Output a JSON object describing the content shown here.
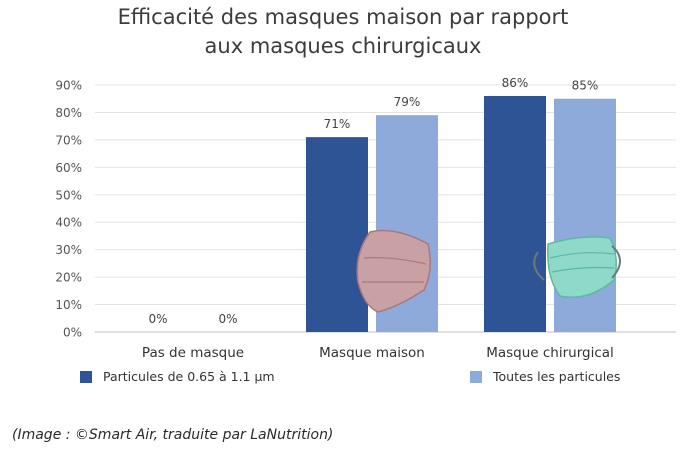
{
  "chart_data": {
    "type": "bar",
    "title_lines": [
      "Efficacité des masques maison par rapport",
      "aux masques chirurgicaux"
    ],
    "categories": [
      "Pas de masque",
      "Masque maison",
      "Masque chirurgical"
    ],
    "series": [
      {
        "name": "Particules de 0.65 à 1.1 µm",
        "values": [
          0,
          71,
          86
        ],
        "labels": [
          "0%",
          "71%",
          "86%"
        ],
        "color": "#2f5496"
      },
      {
        "name": "Toutes les particules",
        "values": [
          0,
          79,
          85
        ],
        "labels": [
          "0%",
          "79%",
          "85%"
        ],
        "color": "#8eaadb"
      }
    ],
    "y_ticks": [
      "0%",
      "10%",
      "20%",
      "30%",
      "40%",
      "50%",
      "60%",
      "70%",
      "80%",
      "90%"
    ],
    "ylim": [
      0,
      90
    ],
    "grid": true,
    "legend_position": "bottom",
    "xlabel": "",
    "ylabel": ""
  },
  "source_text": "(Image : ©Smart Air, traduite par LaNutrition)"
}
